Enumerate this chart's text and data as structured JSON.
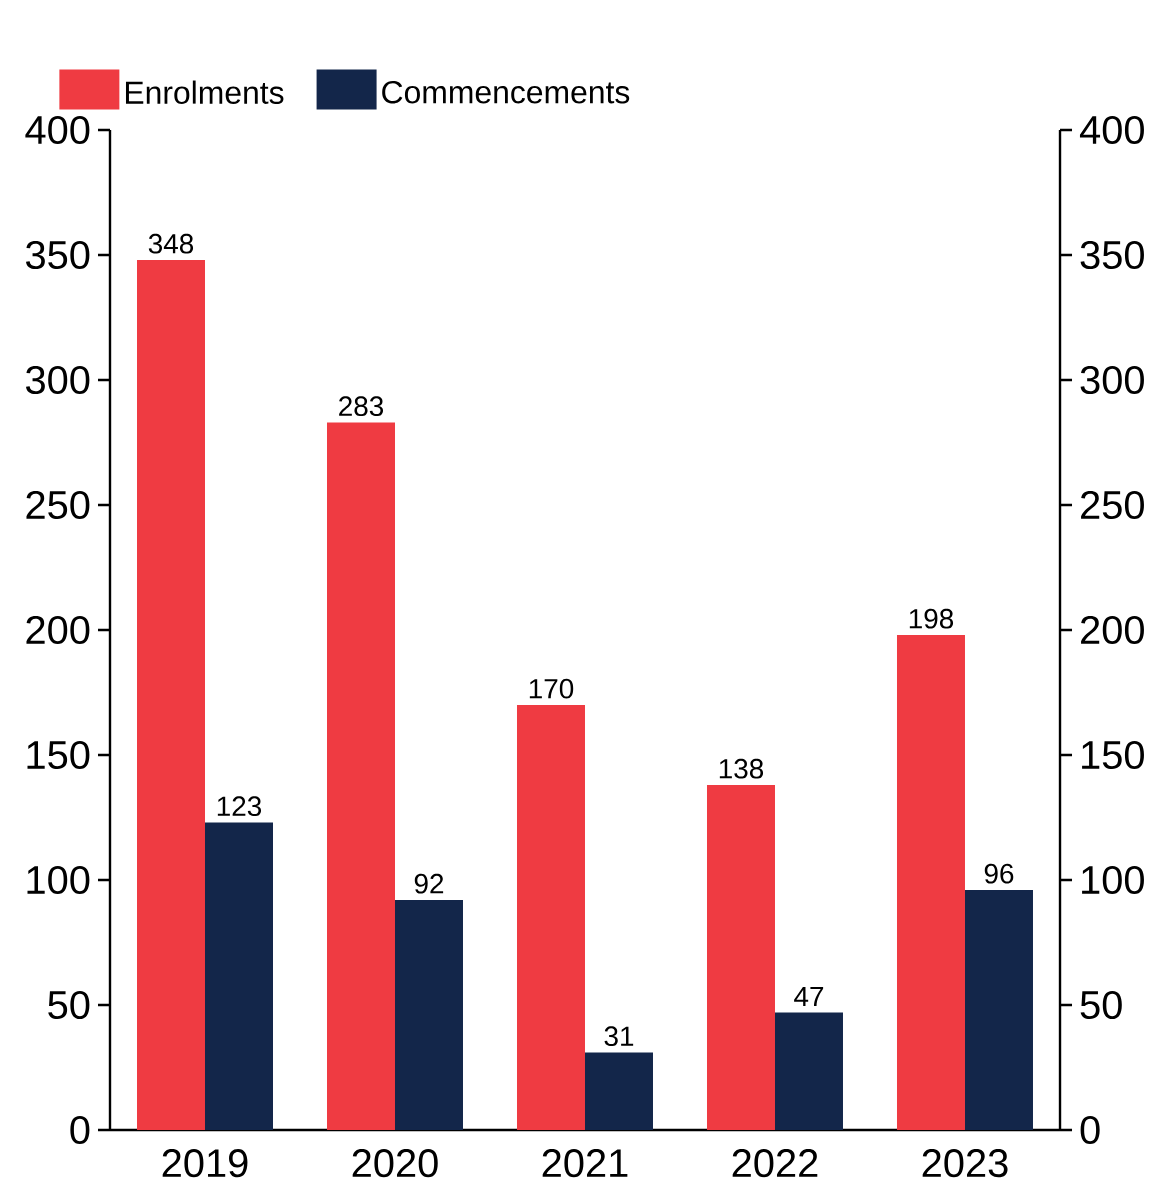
{
  "chart_data": {
    "type": "bar",
    "categories": [
      "2019",
      "2020",
      "2021",
      "2022",
      "2023"
    ],
    "series": [
      {
        "name": "Enrolments",
        "color": "#ef3b42",
        "values": [
          348,
          283,
          170,
          138,
          198
        ]
      },
      {
        "name": "Commencements",
        "color": "#13264a",
        "values": [
          123,
          92,
          31,
          47,
          96
        ]
      }
    ],
    "ylim": [
      0,
      400
    ],
    "yticks": [
      0,
      50,
      100,
      150,
      200,
      250,
      300,
      350,
      400
    ],
    "y2lim": [
      0,
      400
    ],
    "y2ticks": [
      0,
      50,
      100,
      150,
      200,
      250,
      300,
      350,
      400
    ],
    "data_labels": true,
    "legend": "top left",
    "grid": false
  }
}
